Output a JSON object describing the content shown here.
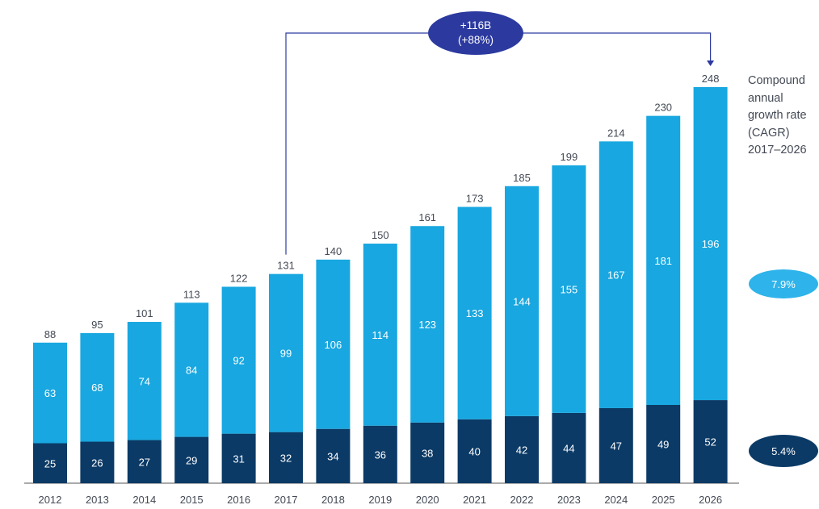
{
  "chart_data": {
    "type": "bar",
    "stacked": true,
    "categories": [
      "2012",
      "2013",
      "2014",
      "2015",
      "2016",
      "2017",
      "2018",
      "2019",
      "2020",
      "2021",
      "2022",
      "2023",
      "2024",
      "2025",
      "2026"
    ],
    "series": [
      {
        "values": [
          25,
          26,
          27,
          29,
          31,
          32,
          34,
          36,
          38,
          40,
          42,
          44,
          47,
          49,
          52
        ],
        "color": "#0b3a66"
      },
      {
        "values": [
          63,
          68,
          74,
          84,
          92,
          99,
          106,
          114,
          123,
          133,
          144,
          155,
          167,
          181,
          196
        ],
        "color": "#18a7e0"
      }
    ],
    "totals": [
      88,
      95,
      101,
      113,
      122,
      131,
      140,
      150,
      161,
      173,
      185,
      199,
      214,
      230,
      248
    ],
    "ylim": [
      0,
      248
    ],
    "grid": false,
    "legend": "none"
  },
  "annotation": {
    "line1": "+116B",
    "line2": "(+88%)",
    "from_category": "2017",
    "to_category": "2026",
    "color": "#2c3aa0"
  },
  "cagr": {
    "title": "Compound annual growth rate (CAGR) 2017–2026",
    "top_value": "7.9%",
    "bottom_value": "5.4%",
    "top_color": "#2eb3ea",
    "bottom_color": "#0b3a66"
  }
}
